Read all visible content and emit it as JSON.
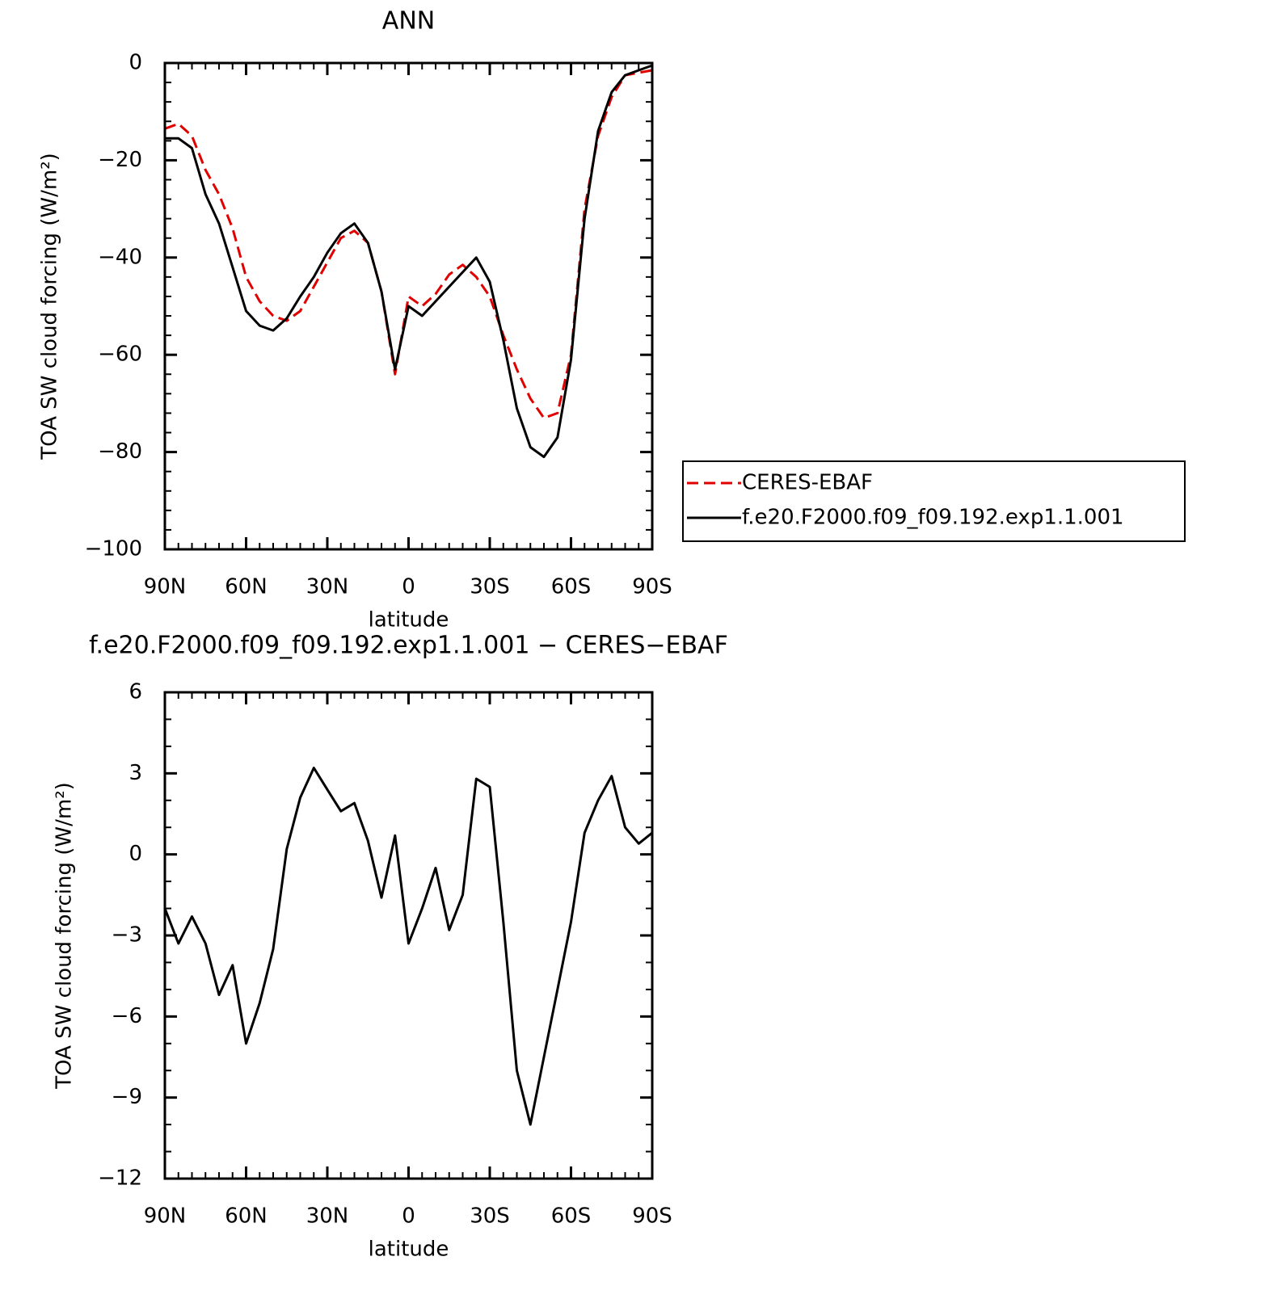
{
  "chart_data": [
    {
      "type": "line",
      "title": "ANN",
      "xlabel": "latitude",
      "ylabel": "TOA SW cloud forcing (W/m²)",
      "x": [
        90,
        85,
        80,
        75,
        70,
        65,
        60,
        55,
        50,
        45,
        40,
        35,
        30,
        25,
        20,
        15,
        10,
        5,
        0,
        -5,
        -10,
        -15,
        -20,
        -25,
        -30,
        -35,
        -40,
        -45,
        -50,
        -55,
        -60,
        -65,
        -70,
        -75,
        -80,
        -85,
        -90
      ],
      "series": [
        {
          "name": "CERES-EBAF",
          "color": "#e00000",
          "style": "dashed",
          "values": [
            -13.5,
            -12.5,
            -15,
            -22,
            -27,
            -34,
            -44,
            -49,
            -52,
            -53,
            -51,
            -46,
            -41,
            -36,
            -34.5,
            -37,
            -47,
            -64,
            -48,
            -50,
            -47.5,
            -43.5,
            -41.5,
            -44,
            -48,
            -56,
            -63,
            -69,
            -73,
            -72,
            -60,
            -30,
            -15,
            -7,
            -2.5,
            -2,
            -1.5
          ]
        },
        {
          "name": "f.e20.F2000.f09_f09.192.exp1.1.001",
          "color": "#000000",
          "style": "solid",
          "values": [
            -15.5,
            -15.5,
            -17.5,
            -27,
            -33,
            -42,
            -51,
            -54,
            -55,
            -52.5,
            -48,
            -44,
            -39,
            -35,
            -33,
            -37,
            -47,
            -63,
            -50,
            -52,
            -49,
            -46,
            -43,
            -40,
            -45,
            -57,
            -71,
            -79,
            -81,
            -77,
            -61,
            -32,
            -14,
            -6,
            -2.5,
            -1.5,
            -0.5
          ]
        }
      ],
      "xlim": [
        90,
        -90
      ],
      "xticks": [
        {
          "value": 90,
          "label": "90N"
        },
        {
          "value": 60,
          "label": "60N"
        },
        {
          "value": 30,
          "label": "30N"
        },
        0,
        {
          "value": -30,
          "label": "30S"
        },
        {
          "value": -60,
          "label": "60S"
        },
        {
          "value": -90,
          "label": "90S"
        }
      ],
      "ylim": [
        -100,
        0
      ],
      "yticks": [
        {
          "value": -100,
          "label": "−100"
        },
        {
          "value": -80,
          "label": "−80"
        },
        {
          "value": -60,
          "label": "−60"
        },
        {
          "value": -40,
          "label": "−40"
        },
        {
          "value": -20,
          "label": "−20"
        },
        0
      ],
      "legend": "right"
    },
    {
      "type": "line",
      "title": "f.e20.F2000.f09_f09.192.exp1.1.001 − CERES−EBAF",
      "xlabel": "latitude",
      "ylabel": "TOA SW cloud forcing (W/m²)",
      "x": [
        90,
        85,
        80,
        75,
        70,
        65,
        60,
        55,
        50,
        45,
        40,
        35,
        30,
        25,
        20,
        15,
        10,
        5,
        0,
        -5,
        -10,
        -15,
        -20,
        -25,
        -30,
        -35,
        -40,
        -45,
        -50,
        -55,
        -60,
        -65,
        -70,
        -75,
        -80,
        -85,
        -90
      ],
      "series": [
        {
          "color": "#000000",
          "style": "solid",
          "values": [
            -2,
            -3.3,
            -2.3,
            -3.3,
            -5.2,
            -4.1,
            -7,
            -5.5,
            -3.5,
            0.2,
            2.1,
            3.2,
            2.4,
            1.6,
            1.9,
            0.5,
            -1.6,
            0.7,
            -3.3,
            -2,
            -0.5,
            -2.8,
            -1.5,
            2.8,
            2.5,
            -2.5,
            -8,
            -10,
            -7.5,
            -5,
            -2.5,
            0.8,
            2,
            2.9,
            1,
            0.4,
            0.8
          ]
        }
      ],
      "xlim": [
        90,
        -90
      ],
      "xticks": [
        {
          "value": 90,
          "label": "90N"
        },
        {
          "value": 60,
          "label": "60N"
        },
        {
          "value": 30,
          "label": "30N"
        },
        0,
        {
          "value": -30,
          "label": "30S"
        },
        {
          "value": -60,
          "label": "60S"
        },
        {
          "value": -90,
          "label": "90S"
        }
      ],
      "ylim": [
        -12,
        6
      ],
      "yticks": [
        {
          "value": -12,
          "label": "−12"
        },
        {
          "value": -9,
          "label": "−9"
        },
        {
          "value": -6,
          "label": "−6"
        },
        {
          "value": -3,
          "label": "−3"
        },
        0,
        3,
        6
      ]
    }
  ]
}
